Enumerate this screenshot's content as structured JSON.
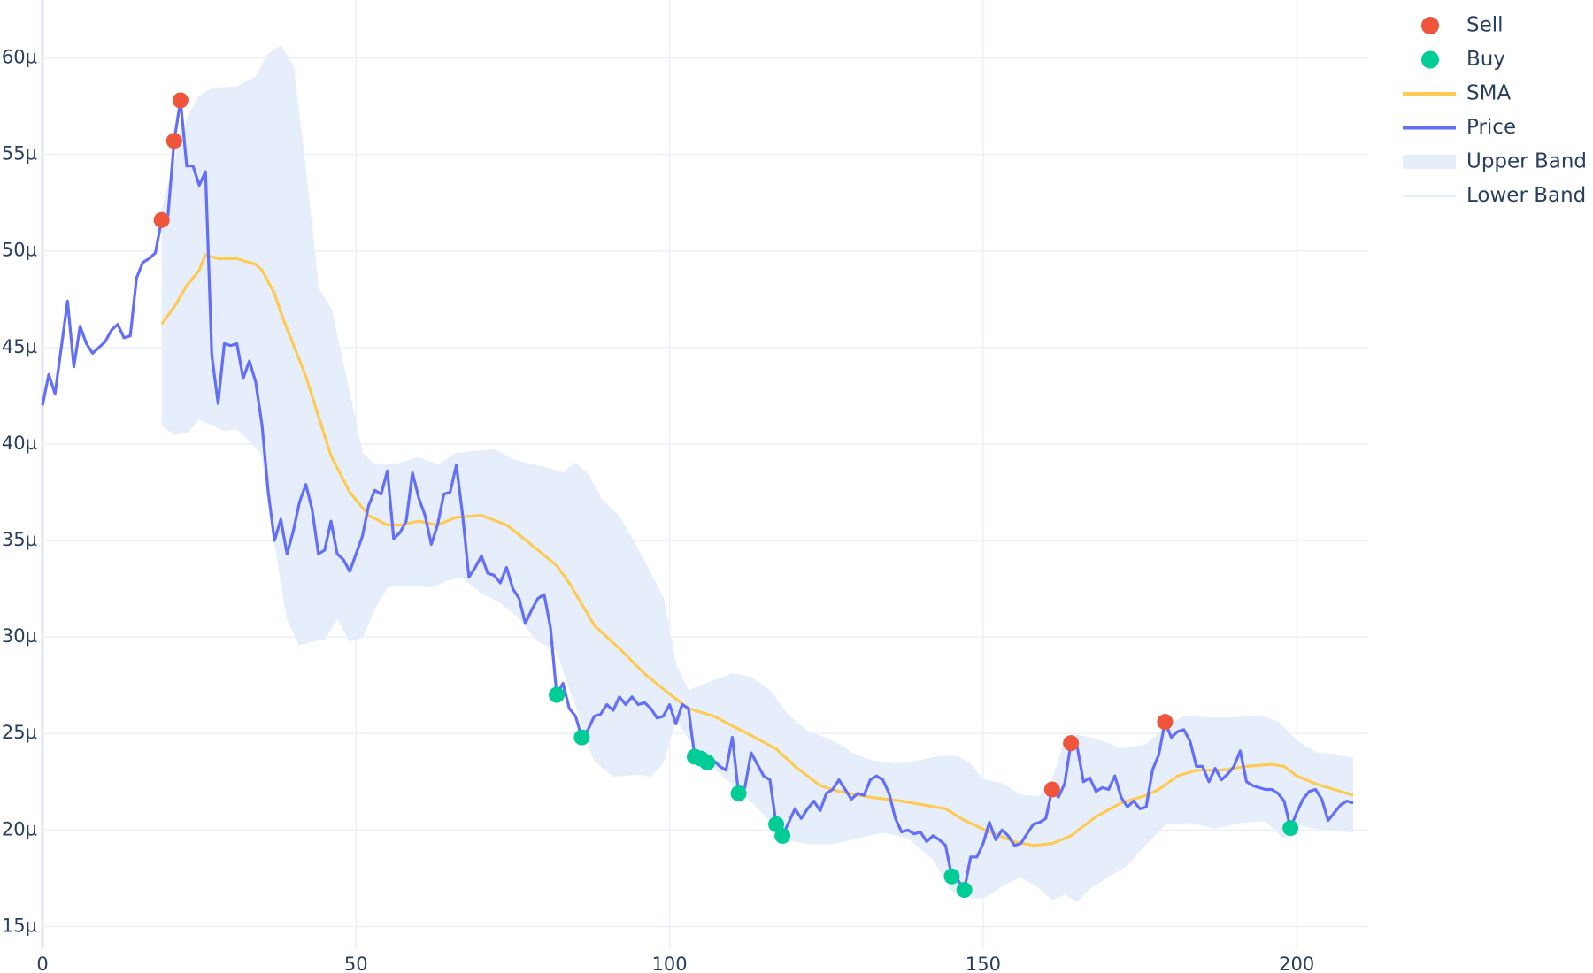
{
  "chart_data": {
    "type": "line",
    "xlim": [
      0,
      211.4
    ],
    "ylim": [
      1.383e-05,
      6.3e-05
    ],
    "xticks": [
      0,
      50,
      100,
      150,
      200
    ],
    "yticks": [
      {
        "value": 1.5e-05,
        "label": "15µ"
      },
      {
        "value": 2e-05,
        "label": "20µ"
      },
      {
        "value": 2.5e-05,
        "label": "25µ"
      },
      {
        "value": 3e-05,
        "label": "30µ"
      },
      {
        "value": 3.5e-05,
        "label": "35µ"
      },
      {
        "value": 4e-05,
        "label": "40µ"
      },
      {
        "value": 4.5e-05,
        "label": "45µ"
      },
      {
        "value": 5e-05,
        "label": "50µ"
      },
      {
        "value": 5.5e-05,
        "label": "55µ"
      },
      {
        "value": 6e-05,
        "label": "60µ"
      }
    ],
    "grid": true,
    "legend": "top-right",
    "series": [
      {
        "name": "Upper Band",
        "mode": "lines",
        "fill": true,
        "color": "#e6eefc",
        "x": [
          19,
          21,
          23,
          25,
          27,
          31,
          34,
          36,
          38,
          40,
          42,
          44,
          46,
          48,
          51,
          53,
          56,
          60,
          63,
          66,
          69,
          72,
          75,
          78,
          80,
          83,
          85,
          87,
          89,
          92,
          95,
          99,
          101,
          103,
          106,
          110,
          113,
          116,
          119,
          122,
          126,
          129,
          132,
          136,
          140,
          143,
          146,
          148,
          150,
          153,
          156,
          159,
          161,
          163,
          165,
          168,
          172,
          176,
          179,
          182,
          186,
          190,
          194,
          197,
          200,
          203,
          206,
          209
        ],
        "values": [
          5.2e-05,
          5.45e-05,
          5.68e-05,
          5.8e-05,
          5.84e-05,
          5.85e-05,
          5.9e-05,
          6.02e-05,
          6.06e-05,
          5.95e-05,
          5.4e-05,
          4.8e-05,
          4.7e-05,
          4.4e-05,
          3.95e-05,
          3.89e-05,
          3.89e-05,
          3.93e-05,
          3.89e-05,
          3.95e-05,
          3.96e-05,
          3.97e-05,
          3.92e-05,
          3.89e-05,
          3.88e-05,
          3.85e-05,
          3.9e-05,
          3.84e-05,
          3.72e-05,
          3.62e-05,
          3.45e-05,
          3.2e-05,
          2.85e-05,
          2.72e-05,
          2.76e-05,
          2.81e-05,
          2.79e-05,
          2.72e-05,
          2.59e-05,
          2.51e-05,
          2.46e-05,
          2.4e-05,
          2.36e-05,
          2.34e-05,
          2.36e-05,
          2.38e-05,
          2.38e-05,
          2.34e-05,
          2.26e-05,
          2.24e-05,
          2.18e-05,
          2.17e-05,
          2.25e-05,
          2.46e-05,
          2.49e-05,
          2.47e-05,
          2.42e-05,
          2.44e-05,
          2.53e-05,
          2.59e-05,
          2.58e-05,
          2.58e-05,
          2.59e-05,
          2.56e-05,
          2.46e-05,
          2.4e-05,
          2.39e-05,
          2.37e-05
        ]
      },
      {
        "name": "Lower Band",
        "mode": "lines",
        "color": "#e6eefc",
        "x": [
          19,
          21,
          23,
          25,
          27,
          29,
          31,
          33,
          35,
          37,
          39,
          41,
          43,
          45,
          47,
          49,
          51,
          53,
          55,
          58,
          62,
          65,
          67,
          70,
          73,
          76,
          79,
          82,
          85,
          88,
          91,
          95,
          97,
          99,
          101,
          103,
          106,
          110,
          113,
          116,
          119,
          122,
          126,
          130,
          134,
          138,
          142,
          145,
          147,
          150,
          153,
          156,
          159,
          161,
          163,
          165,
          167,
          170,
          173,
          176,
          179,
          183,
          187,
          191,
          195,
          198,
          200,
          203,
          206,
          209
        ],
        "values": [
          4.1e-05,
          4.05e-05,
          4.06e-05,
          4.13e-05,
          4.1e-05,
          4.07e-05,
          4.08e-05,
          4.02e-05,
          3.95e-05,
          3.5e-05,
          3.1e-05,
          2.96e-05,
          2.98e-05,
          2.99e-05,
          3.1e-05,
          2.98e-05,
          3e-05,
          3.15e-05,
          3.26e-05,
          3.27e-05,
          3.26e-05,
          3.3e-05,
          3.31e-05,
          3.23e-05,
          3.18e-05,
          3.1e-05,
          2.98e-05,
          2.93e-05,
          2.65e-05,
          2.36e-05,
          2.28e-05,
          2.29e-05,
          2.28e-05,
          2.35e-05,
          2.58e-05,
          2.48e-05,
          2.35e-05,
          2.24e-05,
          2.15e-05,
          2.05e-05,
          1.95e-05,
          1.93e-05,
          1.93e-05,
          1.96e-05,
          1.99e-05,
          1.96e-05,
          1.85e-05,
          1.69e-05,
          1.65e-05,
          1.65e-05,
          1.71e-05,
          1.76e-05,
          1.7e-05,
          1.64e-05,
          1.67e-05,
          1.63e-05,
          1.7e-05,
          1.76e-05,
          1.82e-05,
          1.93e-05,
          2.03e-05,
          2.04e-05,
          2.01e-05,
          2.04e-05,
          2.05e-05,
          1.96e-05,
          2.03e-05,
          2.01e-05,
          2e-05,
          1.99e-05
        ]
      },
      {
        "name": "SMA",
        "mode": "lines",
        "color": "#fecb52",
        "x": [
          19,
          21,
          23,
          25,
          26,
          28,
          31,
          34,
          35,
          37,
          38,
          42,
          46,
          49,
          52,
          55,
          57,
          60,
          63,
          66,
          70,
          74,
          76,
          79,
          82,
          84,
          88,
          92,
          96,
          99,
          103,
          107,
          110,
          113,
          117,
          120,
          124,
          127,
          132,
          137,
          144,
          147,
          151,
          155,
          158,
          161,
          164,
          168,
          172,
          176,
          178,
          181,
          184,
          188,
          192,
          196,
          198,
          200,
          203,
          206,
          209
        ],
        "values": [
          4.62e-05,
          4.71e-05,
          4.82e-05,
          4.9e-05,
          4.98e-05,
          4.96e-05,
          4.96e-05,
          4.93e-05,
          4.9e-05,
          4.78e-05,
          4.68e-05,
          4.35e-05,
          3.94e-05,
          3.75e-05,
          3.63e-05,
          3.58e-05,
          3.58e-05,
          3.6e-05,
          3.58e-05,
          3.62e-05,
          3.63e-05,
          3.58e-05,
          3.53e-05,
          3.45e-05,
          3.37e-05,
          3.28e-05,
          3.06e-05,
          2.94e-05,
          2.81e-05,
          2.73e-05,
          2.63e-05,
          2.59e-05,
          2.54e-05,
          2.49e-05,
          2.42e-05,
          2.33e-05,
          2.23e-05,
          2.2e-05,
          2.17e-05,
          2.15e-05,
          2.11e-05,
          2.05e-05,
          1.99e-05,
          1.94e-05,
          1.92e-05,
          1.93e-05,
          1.97e-05,
          2.07e-05,
          2.14e-05,
          2.18e-05,
          2.21e-05,
          2.28e-05,
          2.31e-05,
          2.31e-05,
          2.33e-05,
          2.34e-05,
          2.33e-05,
          2.28e-05,
          2.24e-05,
          2.21e-05,
          2.18e-05
        ]
      },
      {
        "name": "Price",
        "mode": "lines",
        "color": "#636efa",
        "x": [
          0,
          1,
          2,
          3,
          4,
          5,
          6,
          7,
          8,
          9,
          10,
          11,
          12,
          13,
          14,
          15,
          16,
          17,
          18,
          19,
          20,
          21,
          22,
          23,
          24,
          25,
          26,
          27,
          28,
          29,
          30,
          31,
          32,
          33,
          34,
          35,
          36,
          37,
          38,
          39,
          40,
          41,
          42,
          43,
          44,
          45,
          46,
          47,
          48,
          49,
          50,
          51,
          52,
          53,
          54,
          55,
          56,
          57,
          58,
          59,
          60,
          61,
          62,
          63,
          64,
          65,
          66,
          67,
          68,
          69,
          70,
          71,
          72,
          73,
          74,
          75,
          76,
          77,
          78,
          79,
          80,
          81,
          82,
          83,
          84,
          85,
          86,
          87,
          88,
          89,
          90,
          91,
          92,
          93,
          94,
          95,
          96,
          97,
          98,
          99,
          100,
          101,
          102,
          103,
          104,
          105,
          106,
          107,
          108,
          109,
          110,
          111,
          112,
          113,
          114,
          115,
          116,
          117,
          118,
          119,
          120,
          121,
          122,
          123,
          124,
          125,
          126,
          127,
          128,
          129,
          130,
          131,
          132,
          133,
          134,
          135,
          136,
          137,
          138,
          139,
          140,
          141,
          142,
          143,
          144,
          145,
          146,
          147,
          148,
          149,
          150,
          151,
          152,
          153,
          154,
          155,
          156,
          157,
          158,
          159,
          160,
          161,
          162,
          163,
          164,
          165,
          166,
          167,
          168,
          169,
          170,
          171,
          172,
          173,
          174,
          175,
          176,
          177,
          178,
          179,
          180,
          181,
          182,
          183,
          184,
          185,
          186,
          187,
          188,
          189,
          190,
          191,
          192,
          193,
          194,
          195,
          196,
          197,
          198,
          199,
          200,
          201,
          202,
          203,
          204,
          205,
          206,
          207,
          208,
          209
        ],
        "values": [
          4.2e-05,
          4.36e-05,
          4.26e-05,
          4.5e-05,
          4.74e-05,
          4.4e-05,
          4.61e-05,
          4.52e-05,
          4.47e-05,
          4.5e-05,
          4.53e-05,
          4.59e-05,
          4.62e-05,
          4.55e-05,
          4.56e-05,
          4.86e-05,
          4.94e-05,
          4.96e-05,
          4.99e-05,
          5.16e-05,
          5.18e-05,
          5.57e-05,
          5.78e-05,
          5.44e-05,
          5.44e-05,
          5.34e-05,
          5.41e-05,
          4.46e-05,
          4.21e-05,
          4.52e-05,
          4.51e-05,
          4.52e-05,
          4.34e-05,
          4.43e-05,
          4.32e-05,
          4.1e-05,
          3.75e-05,
          3.5e-05,
          3.61e-05,
          3.43e-05,
          3.55e-05,
          3.7e-05,
          3.79e-05,
          3.66e-05,
          3.43e-05,
          3.45e-05,
          3.6e-05,
          3.43e-05,
          3.4e-05,
          3.34e-05,
          3.43e-05,
          3.52e-05,
          3.68e-05,
          3.76e-05,
          3.74e-05,
          3.86e-05,
          3.51e-05,
          3.54e-05,
          3.6e-05,
          3.85e-05,
          3.72e-05,
          3.63e-05,
          3.48e-05,
          3.58e-05,
          3.74e-05,
          3.75e-05,
          3.89e-05,
          3.63e-05,
          3.31e-05,
          3.36e-05,
          3.42e-05,
          3.33e-05,
          3.32e-05,
          3.28e-05,
          3.36e-05,
          3.25e-05,
          3.2e-05,
          3.07e-05,
          3.14e-05,
          3.2e-05,
          3.22e-05,
          3.05e-05,
          2.7e-05,
          2.76e-05,
          2.63e-05,
          2.59e-05,
          2.48e-05,
          2.52e-05,
          2.59e-05,
          2.6e-05,
          2.65e-05,
          2.62e-05,
          2.69e-05,
          2.65e-05,
          2.69e-05,
          2.65e-05,
          2.66e-05,
          2.63e-05,
          2.58e-05,
          2.59e-05,
          2.65e-05,
          2.55e-05,
          2.65e-05,
          2.63e-05,
          2.38e-05,
          2.37e-05,
          2.35e-05,
          2.36e-05,
          2.33e-05,
          2.31e-05,
          2.48e-05,
          2.19e-05,
          2.22e-05,
          2.4e-05,
          2.34e-05,
          2.28e-05,
          2.26e-05,
          2.03e-05,
          1.97e-05,
          2.04e-05,
          2.11e-05,
          2.06e-05,
          2.11e-05,
          2.15e-05,
          2.1e-05,
          2.19e-05,
          2.21e-05,
          2.26e-05,
          2.21e-05,
          2.16e-05,
          2.19e-05,
          2.18e-05,
          2.26e-05,
          2.28e-05,
          2.26e-05,
          2.19e-05,
          2.06e-05,
          1.99e-05,
          2e-05,
          1.98e-05,
          1.99e-05,
          1.94e-05,
          1.97e-05,
          1.95e-05,
          1.92e-05,
          1.76e-05,
          1.74e-05,
          1.69e-05,
          1.86e-05,
          1.86e-05,
          1.93e-05,
          2.04e-05,
          1.95e-05,
          2e-05,
          1.97e-05,
          1.92e-05,
          1.93e-05,
          1.98e-05,
          2.03e-05,
          2.04e-05,
          2.06e-05,
          2.21e-05,
          2.17e-05,
          2.24e-05,
          2.45e-05,
          2.43e-05,
          2.25e-05,
          2.27e-05,
          2.2e-05,
          2.22e-05,
          2.21e-05,
          2.28e-05,
          2.17e-05,
          2.12e-05,
          2.15e-05,
          2.11e-05,
          2.12e-05,
          2.31e-05,
          2.39e-05,
          2.56e-05,
          2.48e-05,
          2.51e-05,
          2.52e-05,
          2.46e-05,
          2.33e-05,
          2.33e-05,
          2.25e-05,
          2.32e-05,
          2.26e-05,
          2.29e-05,
          2.33e-05,
          2.41e-05,
          2.25e-05,
          2.23e-05,
          2.22e-05,
          2.21e-05,
          2.21e-05,
          2.19e-05,
          2.15e-05,
          2.01e-05,
          2.09e-05,
          2.16e-05,
          2.2e-05,
          2.21e-05,
          2.16e-05,
          2.05e-05,
          2.09e-05,
          2.13e-05,
          2.15e-05,
          2.14e-05
        ]
      },
      {
        "name": "Buy",
        "mode": "markers",
        "color": "#00cc96",
        "x": [
          82,
          86,
          104,
          105,
          106,
          111,
          117,
          118,
          145,
          147,
          199
        ],
        "values": [
          2.7e-05,
          2.48e-05,
          2.38e-05,
          2.37e-05,
          2.35e-05,
          2.19e-05,
          2.03e-05,
          1.97e-05,
          1.76e-05,
          1.69e-05,
          2.01e-05
        ]
      },
      {
        "name": "Sell",
        "mode": "markers",
        "color": "#ef553b",
        "x": [
          19,
          21,
          22,
          161,
          164,
          179
        ],
        "values": [
          5.16e-05,
          5.57e-05,
          5.78e-05,
          2.21e-05,
          2.45e-05,
          2.56e-05
        ]
      }
    ],
    "legend_order": [
      "Sell",
      "Buy",
      "SMA",
      "Price",
      "Upper Band",
      "Lower Band"
    ]
  }
}
